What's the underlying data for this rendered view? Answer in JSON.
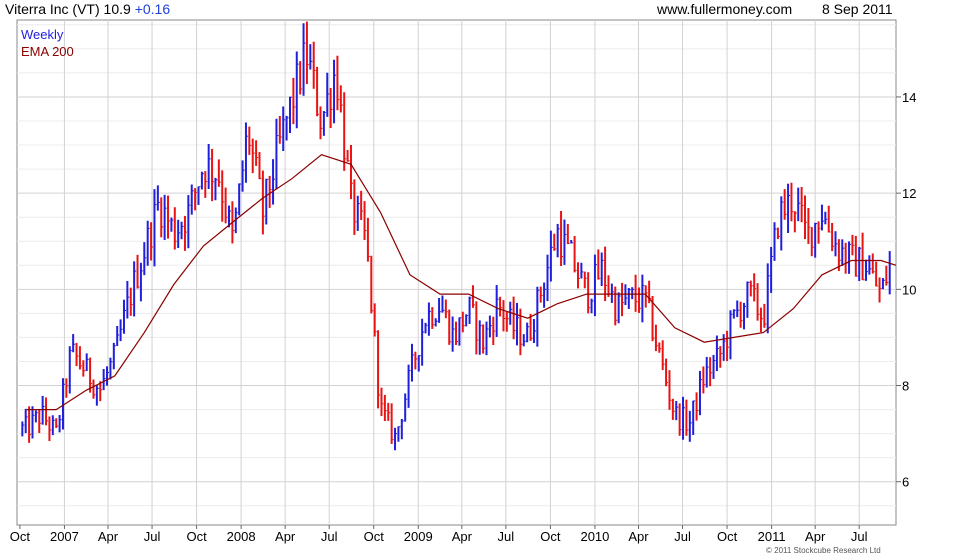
{
  "header": {
    "title": "Viterra Inc (VT) 10.9",
    "change": "+0.16",
    "site": "www.fullermoney.com",
    "date": "8 Sep 2011"
  },
  "copyright": "© 2011 Stockcube Research Ltd",
  "chart_data": {
    "type": "line",
    "title": "Viterra Inc (VT) 10.9",
    "xlabel": "",
    "ylabel": "",
    "x_ticks": [
      "Oct",
      "2007",
      "Apr",
      "Jul",
      "Oct",
      "2008",
      "Apr",
      "Jul",
      "Oct",
      "2009",
      "Apr",
      "Jul",
      "Oct",
      "2010",
      "Apr",
      "Jul",
      "Oct",
      "2011",
      "Apr",
      "Jul"
    ],
    "y_ticks": [
      6,
      8,
      10,
      12,
      14
    ],
    "ylim": [
      5.1,
      15.6
    ],
    "grid": true,
    "legend": [
      "Weekly",
      "EMA 200"
    ],
    "legend_position": "top-left",
    "colors": {
      "up": "#1f1fdc",
      "down": "#e81414",
      "ema": "#8b0000",
      "grid": "#d2d2d2"
    },
    "series": [
      {
        "name": "Weekly",
        "style": "hlc-bars",
        "x": [
          "2006-10",
          "2006-11",
          "2006-12",
          "2007-01",
          "2007-02",
          "2007-03",
          "2007-04",
          "2007-05",
          "2007-06",
          "2007-07",
          "2007-08",
          "2007-09",
          "2007-10",
          "2007-11",
          "2007-12",
          "2008-01",
          "2008-02",
          "2008-03",
          "2008-04",
          "2008-05",
          "2008-06",
          "2008-07",
          "2008-08",
          "2008-09",
          "2008-10",
          "2008-11",
          "2008-12",
          "2009-01",
          "2009-02",
          "2009-03",
          "2009-04",
          "2009-05",
          "2009-06",
          "2009-07",
          "2009-08",
          "2009-09",
          "2009-10",
          "2009-11",
          "2009-12",
          "2010-01",
          "2010-02",
          "2010-03",
          "2010-04",
          "2010-05",
          "2010-06",
          "2010-07",
          "2010-08",
          "2010-09",
          "2010-10",
          "2010-11",
          "2010-12",
          "2011-01",
          "2011-02",
          "2011-03",
          "2011-04",
          "2011-05",
          "2011-06",
          "2011-07",
          "2011-08",
          "2011-09"
        ],
        "values": [
          7.1,
          7.4,
          7.0,
          8.7,
          8.3,
          7.9,
          8.6,
          9.8,
          10.8,
          11.8,
          11.2,
          11.6,
          12.6,
          12.4,
          11.0,
          13.3,
          11.6,
          12.8,
          13.9,
          14.9,
          13.5,
          14.6,
          11.8,
          11.0,
          7.5,
          6.9,
          8.2,
          9.4,
          9.7,
          9.0,
          9.6,
          8.9,
          9.7,
          9.2,
          9.0,
          10.1,
          11.2,
          10.6,
          9.9,
          10.4,
          9.6,
          9.8,
          9.8,
          8.6,
          7.4,
          7.2,
          8.2,
          8.6,
          9.4,
          9.9,
          9.4,
          11.5,
          11.9,
          11.1,
          11.6,
          10.9,
          10.6,
          10.5,
          9.9,
          10.9
        ]
      },
      {
        "name": "EMA 200",
        "x": [
          "2006-10",
          "2006-12",
          "2007-02",
          "2007-04",
          "2007-06",
          "2007-08",
          "2007-10",
          "2007-12",
          "2008-02",
          "2008-04",
          "2008-06",
          "2008-08",
          "2008-10",
          "2008-12",
          "2009-02",
          "2009-04",
          "2009-06",
          "2009-08",
          "2009-10",
          "2009-12",
          "2010-02",
          "2010-04",
          "2010-06",
          "2010-08",
          "2010-10",
          "2010-12",
          "2011-02",
          "2011-04",
          "2011-06",
          "2011-08",
          "2011-09"
        ],
        "values": [
          7.5,
          7.5,
          7.9,
          8.2,
          9.1,
          10.1,
          10.9,
          11.4,
          11.9,
          12.3,
          12.8,
          12.6,
          11.6,
          10.3,
          9.9,
          9.9,
          9.6,
          9.4,
          9.7,
          9.9,
          9.9,
          9.9,
          9.2,
          8.9,
          9.0,
          9.1,
          9.6,
          10.3,
          10.6,
          10.6,
          10.5
        ]
      }
    ]
  }
}
